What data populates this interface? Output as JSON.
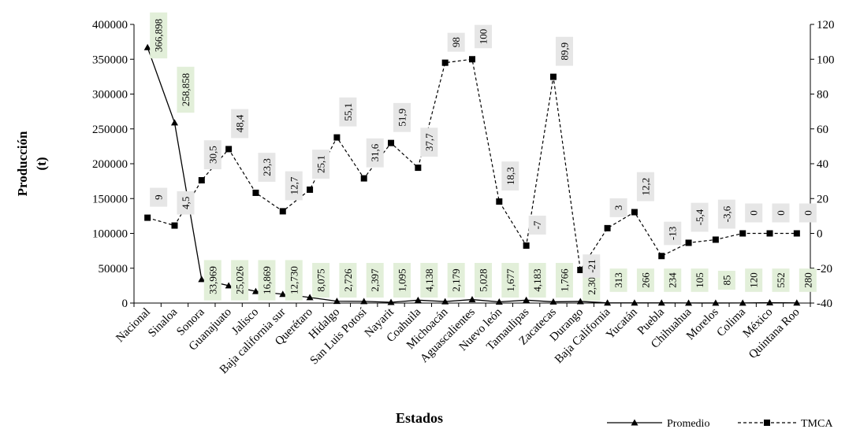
{
  "chart_data": {
    "type": "line",
    "xlabel": "Estados",
    "ylabel_lines": [
      "Producción",
      "(t)"
    ],
    "y_left_lim": [
      0,
      400000
    ],
    "y_left_ticks": [
      "0",
      "50000",
      "100000",
      "150000",
      "200000",
      "250000",
      "300000",
      "350000",
      "400000"
    ],
    "y_right_lim": [
      -40,
      120
    ],
    "y_right_ticks": [
      "-40",
      "-20",
      "0",
      "20",
      "40",
      "60",
      "80",
      "100",
      "120"
    ],
    "grid": false,
    "legend_position": "bottom-right",
    "categories": [
      "Nacional",
      "Sinaloa",
      "Sonora",
      "Guanajuato",
      "Jalisco",
      "Baja california sur",
      "Querétaro",
      "Hidalgo",
      "San Luis Potosí",
      "Nayarit",
      "Coahuila",
      "Michoacán",
      "Aguascalientes",
      "Nuevo león",
      "Tamaulipas",
      "Zacatecas",
      "Durango",
      "Baja California",
      "Yucatán",
      "Puebla",
      "Chihuahua",
      "Morelos",
      "Colima",
      "México",
      "Quintana Roo"
    ],
    "series": [
      {
        "name": "Promedio",
        "axis": "left",
        "style": "solid-triangle",
        "values": [
          366898,
          258858,
          33969,
          25026,
          16869,
          12730,
          8075,
          2726,
          2397,
          1095,
          4138,
          2179,
          5028,
          1677,
          4183,
          1766,
          2303,
          313,
          266,
          234,
          105,
          85,
          120,
          552,
          280
        ],
        "labels": [
          "366,898",
          "258,858",
          "33,969",
          "25,026",
          "16,869",
          "12,730",
          "8,075",
          "2,726",
          "2,397",
          "1,095",
          "4,138",
          "2,179",
          "5,028",
          "1,677",
          "4,183",
          "1,766",
          "2,303",
          "313",
          "266",
          "234",
          "105",
          "85",
          "120",
          "552",
          "280"
        ],
        "label_color": "#e2efd9"
      },
      {
        "name": "TMCA",
        "axis": "right",
        "style": "dashed-square",
        "values": [
          9,
          4.5,
          30.5,
          48.4,
          23.3,
          12.7,
          25.1,
          55.1,
          31.6,
          51.9,
          37.7,
          98,
          100,
          18.3,
          -7,
          89.9,
          -21,
          3,
          12.2,
          -13,
          -5.4,
          -3.6,
          0,
          0,
          0
        ],
        "labels": [
          "9",
          "4,5",
          "30,5",
          "48,4",
          "23,3",
          "12,7",
          "25,1",
          "55,1",
          "31,6",
          "51,9",
          "37,7",
          "98",
          "100",
          "18,3",
          "-7",
          "89,9",
          "-21",
          "3",
          "12,2",
          "-13",
          "-5,4",
          "-3,6",
          "0",
          "0",
          "0"
        ],
        "label_color": "#e6e6e6"
      }
    ]
  }
}
